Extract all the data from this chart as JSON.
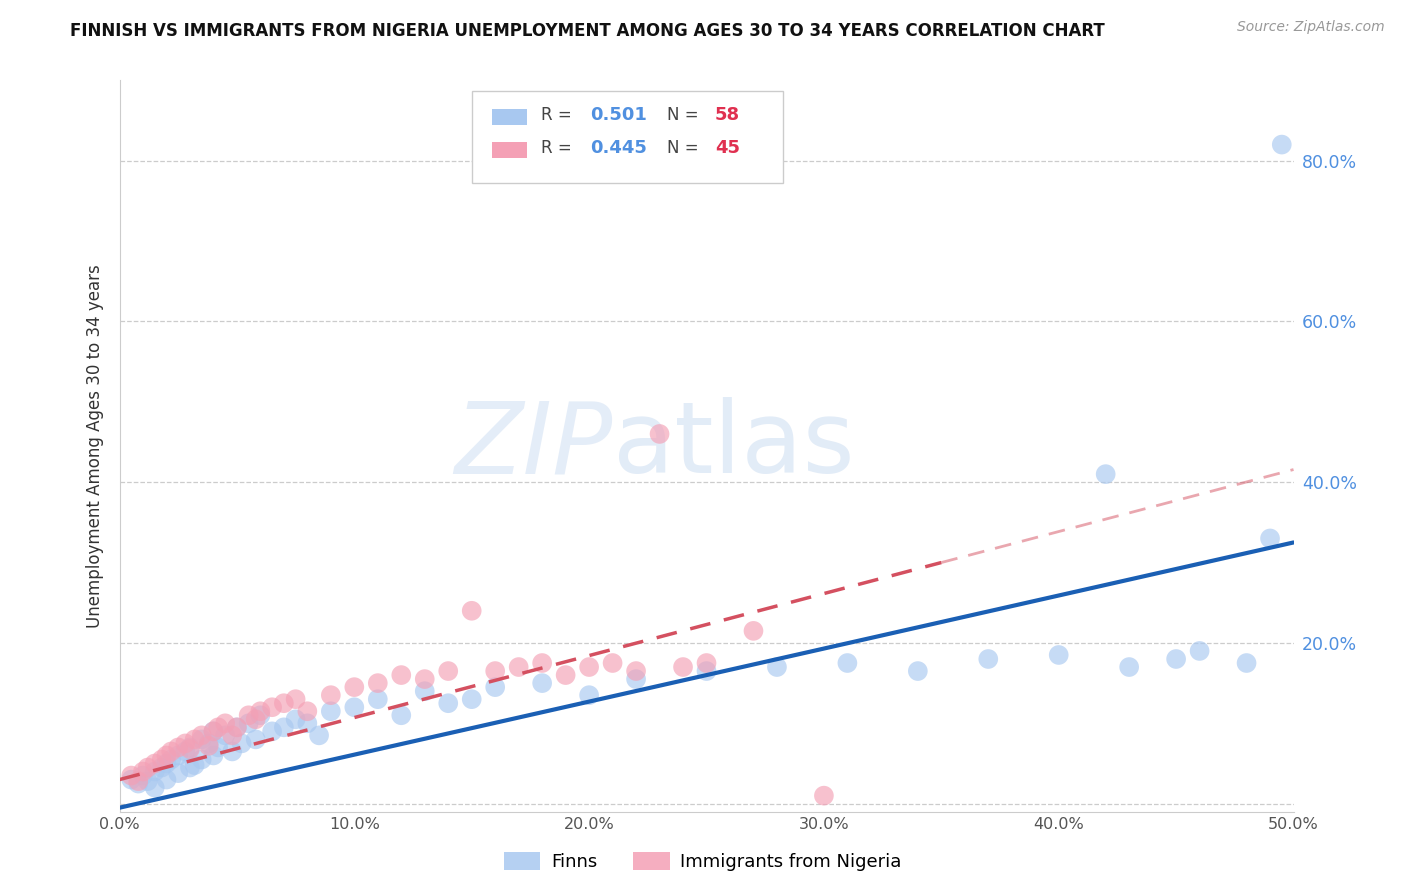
{
  "title": "FINNISH VS IMMIGRANTS FROM NIGERIA UNEMPLOYMENT AMONG AGES 30 TO 34 YEARS CORRELATION CHART",
  "source": "Source: ZipAtlas.com",
  "ylabel": "Unemployment Among Ages 30 to 34 years",
  "xlim": [
    0.0,
    0.5
  ],
  "ylim": [
    -0.01,
    0.9
  ],
  "x_ticks": [
    0.0,
    0.1,
    0.2,
    0.3,
    0.4,
    0.5
  ],
  "x_tick_labels": [
    "0.0%",
    "10.0%",
    "20.0%",
    "30.0%",
    "40.0%",
    "50.0%"
  ],
  "y_ticks_right": [
    0.2,
    0.4,
    0.6,
    0.8
  ],
  "y_tick_labels_right": [
    "20.0%",
    "40.0%",
    "60.0%",
    "80.0%"
  ],
  "legend_r1": "0.501",
  "legend_n1": "58",
  "legend_r2": "0.445",
  "legend_n2": "45",
  "finns_color": "#a8c8f0",
  "nigeria_color": "#f4a0b5",
  "finns_line_color": "#1a5fb4",
  "nigeria_line_color": "#d45060",
  "watermark_zip": "ZIP",
  "watermark_atlas": "atlas",
  "finns_scatter_x": [
    0.005,
    0.008,
    0.01,
    0.012,
    0.015,
    0.015,
    0.018,
    0.02,
    0.02,
    0.022,
    0.025,
    0.025,
    0.028,
    0.03,
    0.03,
    0.032,
    0.035,
    0.035,
    0.038,
    0.04,
    0.04,
    0.042,
    0.045,
    0.048,
    0.05,
    0.052,
    0.055,
    0.058,
    0.06,
    0.065,
    0.07,
    0.075,
    0.08,
    0.085,
    0.09,
    0.1,
    0.11,
    0.12,
    0.13,
    0.14,
    0.15,
    0.16,
    0.18,
    0.2,
    0.22,
    0.25,
    0.28,
    0.31,
    0.34,
    0.37,
    0.4,
    0.42,
    0.43,
    0.45,
    0.46,
    0.48,
    0.49,
    0.495
  ],
  "finns_scatter_y": [
    0.03,
    0.025,
    0.035,
    0.028,
    0.04,
    0.02,
    0.045,
    0.05,
    0.03,
    0.055,
    0.06,
    0.038,
    0.065,
    0.07,
    0.045,
    0.048,
    0.08,
    0.055,
    0.075,
    0.09,
    0.06,
    0.07,
    0.085,
    0.065,
    0.095,
    0.075,
    0.1,
    0.08,
    0.11,
    0.09,
    0.095,
    0.105,
    0.1,
    0.085,
    0.115,
    0.12,
    0.13,
    0.11,
    0.14,
    0.125,
    0.13,
    0.145,
    0.15,
    0.135,
    0.155,
    0.165,
    0.17,
    0.175,
    0.165,
    0.18,
    0.185,
    0.41,
    0.17,
    0.18,
    0.19,
    0.175,
    0.33,
    0.82
  ],
  "nigeria_scatter_x": [
    0.005,
    0.008,
    0.01,
    0.012,
    0.015,
    0.018,
    0.02,
    0.022,
    0.025,
    0.028,
    0.03,
    0.032,
    0.035,
    0.038,
    0.04,
    0.042,
    0.045,
    0.048,
    0.05,
    0.055,
    0.058,
    0.06,
    0.065,
    0.07,
    0.075,
    0.08,
    0.09,
    0.1,
    0.11,
    0.12,
    0.13,
    0.14,
    0.15,
    0.16,
    0.17,
    0.18,
    0.19,
    0.2,
    0.21,
    0.22,
    0.23,
    0.24,
    0.25,
    0.27,
    0.3
  ],
  "nigeria_scatter_y": [
    0.035,
    0.028,
    0.04,
    0.045,
    0.05,
    0.055,
    0.06,
    0.065,
    0.07,
    0.075,
    0.068,
    0.08,
    0.085,
    0.072,
    0.09,
    0.095,
    0.1,
    0.085,
    0.095,
    0.11,
    0.105,
    0.115,
    0.12,
    0.125,
    0.13,
    0.115,
    0.135,
    0.145,
    0.15,
    0.16,
    0.155,
    0.165,
    0.24,
    0.165,
    0.17,
    0.175,
    0.16,
    0.17,
    0.175,
    0.165,
    0.46,
    0.17,
    0.175,
    0.215,
    0.01
  ],
  "finns_line_start_x": 0.0,
  "finns_line_start_y": -0.005,
  "finns_line_end_x": 0.5,
  "finns_line_end_y": 0.325,
  "nigeria_line_start_x": 0.0,
  "nigeria_line_start_y": 0.03,
  "nigeria_line_end_x": 0.35,
  "nigeria_line_end_y": 0.3,
  "background_color": "#ffffff",
  "grid_color": "#cccccc",
  "spine_color": "#cccccc",
  "right_tick_color": "#5090e0",
  "title_fontsize": 12,
  "source_fontsize": 10
}
